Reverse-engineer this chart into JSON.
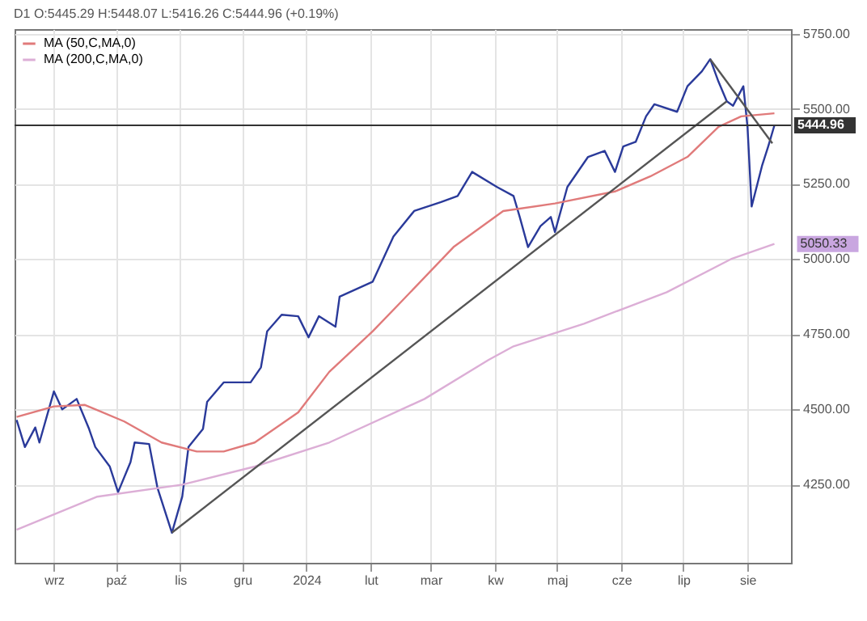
{
  "chart_data": {
    "type": "line",
    "title": "D1 O:5445.29 H:5448.07 L:5416.26 C:5444.96 (+0.19%)",
    "xlim": [
      "2023-08-13",
      "2024-08-22"
    ],
    "xticks": [
      {
        "value": "2023-09-01",
        "label": "wrz"
      },
      {
        "value": "2023-10-01",
        "label": "paź"
      },
      {
        "value": "2023-11-01",
        "label": "lis"
      },
      {
        "value": "2023-12-01",
        "label": "gru"
      },
      {
        "value": "2024-01-01",
        "label": "2024"
      },
      {
        "value": "2024-02-01",
        "label": "lut"
      },
      {
        "value": "2024-03-01",
        "label": "mar"
      },
      {
        "value": "2024-04-01",
        "label": "kw"
      },
      {
        "value": "2024-05-01",
        "label": "maj"
      },
      {
        "value": "2024-06-01",
        "label": "cze"
      },
      {
        "value": "2024-07-01",
        "label": "lip"
      },
      {
        "value": "2024-08-01",
        "label": "sie"
      }
    ],
    "ylim": [
      3990,
      5765
    ],
    "yticks": [
      {
        "value": 4250,
        "label": "4250.00"
      },
      {
        "value": 4500,
        "label": "4500.00"
      },
      {
        "value": 4750,
        "label": "4750.00"
      },
      {
        "value": 5000,
        "label": "5000.00"
      },
      {
        "value": 5250,
        "label": "5250.00"
      },
      {
        "value": 5500,
        "label": "5500.00"
      },
      {
        "value": 5750,
        "label": "5750.00"
      }
    ],
    "grid": true,
    "legend": "top left",
    "series": [
      {
        "color": "#2a3a9a",
        "x": [
          "2023-08-14",
          "2023-08-18",
          "2023-08-23",
          "2023-08-25",
          "2023-09-01",
          "2023-09-05",
          "2023-09-12",
          "2023-09-18",
          "2023-09-21",
          "2023-09-28",
          "2023-10-02",
          "2023-10-08",
          "2023-10-10",
          "2023-10-17",
          "2023-10-21",
          "2023-10-28",
          "2023-11-02",
          "2023-11-05",
          "2023-11-12",
          "2023-11-14",
          "2023-11-22",
          "2023-12-05",
          "2023-12-10",
          "2023-12-13",
          "2023-12-20",
          "2023-12-28",
          "2024-01-02",
          "2024-01-07",
          "2024-01-15",
          "2024-01-17",
          "2024-02-02",
          "2024-02-12",
          "2024-02-22",
          "2024-03-06",
          "2024-03-14",
          "2024-03-21",
          "2024-04-02",
          "2024-04-10",
          "2024-04-13",
          "2024-04-17",
          "2024-04-23",
          "2024-04-28",
          "2024-04-30",
          "2024-05-06",
          "2024-05-16",
          "2024-05-24",
          "2024-05-29",
          "2024-06-02",
          "2024-06-08",
          "2024-06-13",
          "2024-06-17",
          "2024-06-28",
          "2024-07-03",
          "2024-07-10",
          "2024-07-14",
          "2024-07-18",
          "2024-07-22",
          "2024-07-25",
          "2024-07-30",
          "2024-08-01",
          "2024-08-03",
          "2024-08-08",
          "2024-08-11",
          "2024-08-14"
        ],
        "values": [
          4465,
          4375,
          4440,
          4390,
          4560,
          4500,
          4535,
          4435,
          4375,
          4310,
          4225,
          4325,
          4390,
          4385,
          4240,
          4090,
          4210,
          4375,
          4435,
          4525,
          4590,
          4590,
          4640,
          4760,
          4815,
          4810,
          4740,
          4810,
          4775,
          4875,
          4925,
          5075,
          5160,
          5190,
          5210,
          5290,
          5240,
          5210,
          5140,
          5040,
          5110,
          5140,
          5090,
          5240,
          5340,
          5360,
          5290,
          5375,
          5390,
          5475,
          5515,
          5490,
          5575,
          5625,
          5665,
          5590,
          5525,
          5510,
          5575,
          5440,
          5175,
          5310,
          5375,
          5444.96
        ]
      },
      {
        "name": "MA (50,C,MA,0)",
        "color": "#e07a7a",
        "x": [
          "2023-08-14",
          "2023-09-01",
          "2023-09-16",
          "2023-10-05",
          "2023-10-23",
          "2023-11-09",
          "2023-11-22",
          "2023-12-07",
          "2023-12-28",
          "2024-01-12",
          "2024-02-02",
          "2024-02-16",
          "2024-03-12",
          "2024-04-05",
          "2024-04-30",
          "2024-05-29",
          "2024-06-15",
          "2024-07-03",
          "2024-07-18",
          "2024-07-29",
          "2024-08-14"
        ],
        "values": [
          4475,
          4510,
          4515,
          4460,
          4390,
          4360,
          4360,
          4390,
          4490,
          4625,
          4760,
          4860,
          5040,
          5160,
          5185,
          5225,
          5275,
          5340,
          5440,
          5475,
          5485
        ]
      },
      {
        "name": "MA (200,C,MA,0)",
        "color": "#dcaed6",
        "x": [
          "2023-08-14",
          "2023-09-22",
          "2023-11-02",
          "2023-12-07",
          "2024-01-12",
          "2024-02-27",
          "2024-03-29",
          "2024-04-10",
          "2024-05-14",
          "2024-06-02",
          "2024-06-23",
          "2024-07-24",
          "2024-08-14"
        ],
        "values": [
          4100,
          4210,
          4250,
          4310,
          4390,
          4535,
          4665,
          4710,
          4785,
          4835,
          4890,
          5000,
          5050.33
        ]
      },
      {
        "color": "#555555",
        "x": [
          "2023-10-28",
          "2024-07-22"
        ],
        "values": [
          4090,
          5525
        ]
      },
      {
        "color": "#555555",
        "x": [
          "2024-07-14",
          "2024-08-13"
        ],
        "values": [
          5665,
          5385
        ]
      }
    ],
    "ref_lines": [
      {
        "axis": "y",
        "value": 5444.96,
        "label": "5444.96",
        "color": "#333333"
      }
    ],
    "annotations": [
      {
        "text": "5050.33",
        "x": "2024-08-14",
        "y": 5050.33
      }
    ]
  }
}
